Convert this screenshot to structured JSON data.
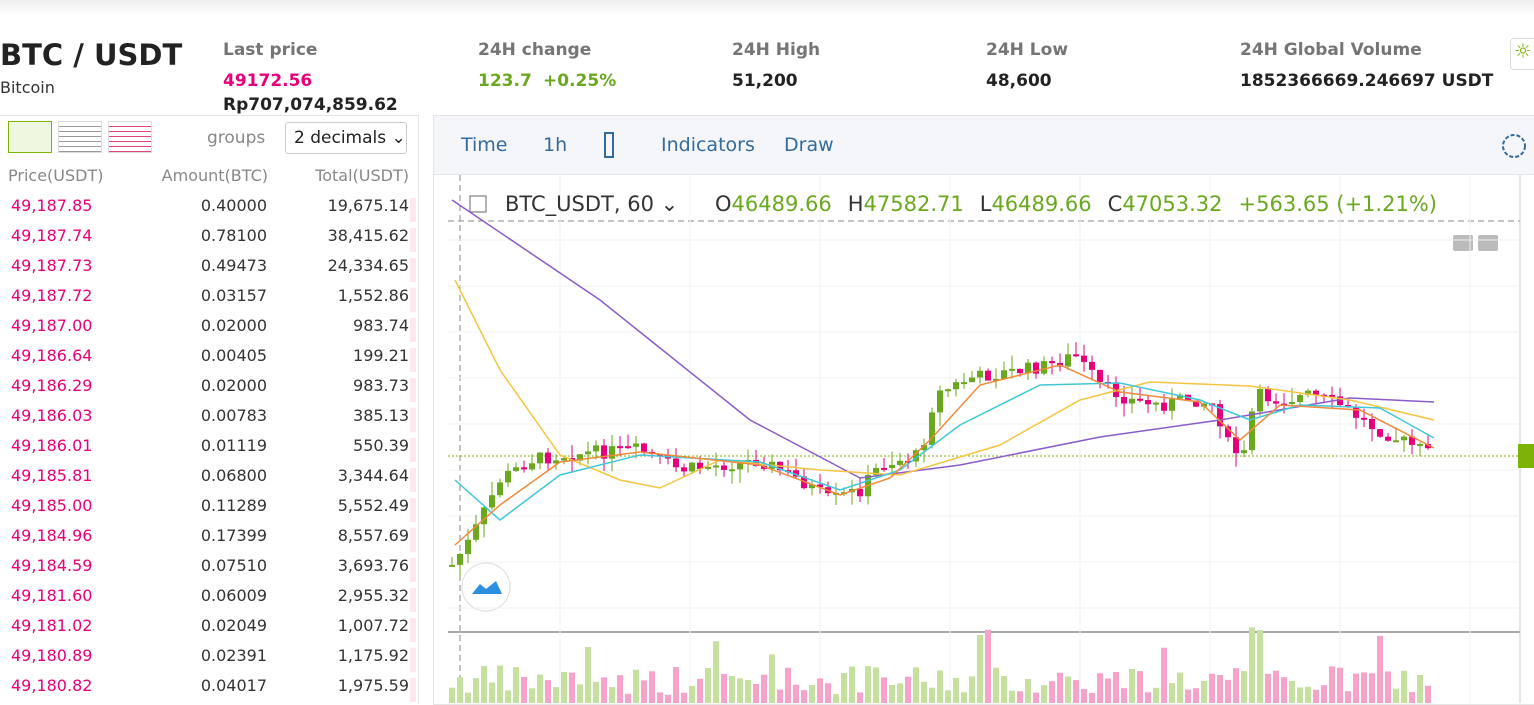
{
  "header": {
    "symbol": "BTC / USDT",
    "name": "Bitcoin",
    "stats": [
      {
        "label": "Last price",
        "value": "49172.56",
        "sub": "Rp707,074,859.62"
      },
      {
        "label": "24H change",
        "value": "123.7",
        "extra": "+0.25%"
      },
      {
        "label": "24H High",
        "value": "51,200"
      },
      {
        "label": "24H Low",
        "value": "48,600"
      },
      {
        "label": "24H Global Volume",
        "value": "1852366669.246697 USDT"
      }
    ]
  },
  "orderbook": {
    "groups_label": "groups",
    "decimals": "2 decimals",
    "columns": [
      "Price(USDT)",
      "Amount(BTC)",
      "Total(USDT)"
    ],
    "rows": [
      [
        "49,187.85",
        "0.40000",
        "19,675.14"
      ],
      [
        "49,187.74",
        "0.78100",
        "38,415.62"
      ],
      [
        "49,187.73",
        "0.49473",
        "24,334.65"
      ],
      [
        "49,187.72",
        "0.03157",
        "1,552.86"
      ],
      [
        "49,187.00",
        "0.02000",
        "983.74"
      ],
      [
        "49,186.64",
        "0.00405",
        "199.21"
      ],
      [
        "49,186.29",
        "0.02000",
        "983.73"
      ],
      [
        "49,186.03",
        "0.00783",
        "385.13"
      ],
      [
        "49,186.01",
        "0.01119",
        "550.39"
      ],
      [
        "49,185.81",
        "0.06800",
        "3,344.64"
      ],
      [
        "49,185.00",
        "0.11289",
        "5,552.49"
      ],
      [
        "49,184.96",
        "0.17399",
        "8,557.69"
      ],
      [
        "49,184.59",
        "0.07510",
        "3,693.76"
      ],
      [
        "49,181.60",
        "0.06009",
        "2,955.32"
      ],
      [
        "49,181.02",
        "0.02049",
        "1,007.72"
      ],
      [
        "49,180.89",
        "0.02391",
        "1,175.92"
      ],
      [
        "49,180.82",
        "0.04017",
        "1,975.59"
      ]
    ]
  },
  "chart": {
    "toolbar": [
      "Time",
      "1h",
      "Indicators",
      "Draw"
    ],
    "symbol": "BTC_USDT, 60",
    "ohlc": [
      {
        "key": "O",
        "value": "46489.66"
      },
      {
        "key": "H",
        "value": "47582.71"
      },
      {
        "key": "L",
        "value": "46489.66"
      },
      {
        "key": "C",
        "value": "47053.32"
      }
    ],
    "change": "+563.65 (+1.21%)"
  }
}
